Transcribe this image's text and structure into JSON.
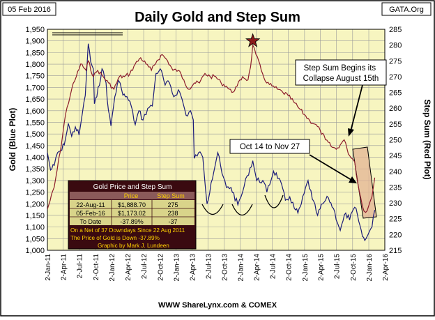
{
  "chart_data": {
    "type": "line",
    "date_box": "05 Feb 2016",
    "source_box": "GATA.Org",
    "title": "Daily Gold and Step Sum",
    "ylabel_left": "Gold   (Blue Plot)",
    "ylabel_right": "Step Sum   (Red Plot)",
    "footer": "WWW ShareLynx.com & COMEX",
    "ylim_left": [
      1000,
      1950
    ],
    "ylim_right": [
      215,
      285
    ],
    "yticks_left": [
      "1,000",
      "1,050",
      "1,100",
      "1,150",
      "1,200",
      "1,250",
      "1,300",
      "1,350",
      "1,400",
      "1,450",
      "1,500",
      "1,550",
      "1,600",
      "1,650",
      "1,700",
      "1,750",
      "1,800",
      "1,850",
      "1,900",
      "1,950"
    ],
    "yticks_right": [
      "215",
      "220",
      "225",
      "230",
      "235",
      "240",
      "245",
      "250",
      "255",
      "260",
      "265",
      "270",
      "275",
      "280",
      "285"
    ],
    "xticks": [
      "2-Jan-11",
      "2-Apr-11",
      "2-Jul-11",
      "2-Oct-11",
      "2-Jan-12",
      "2-Apr-12",
      "2-Jul-12",
      "2-Oct-12",
      "2-Jan-13",
      "2-Apr-13",
      "2-Jul-13",
      "2-Oct-13",
      "2-Jan-14",
      "2-Apr-14",
      "2-Jul-14",
      "2-Oct-14",
      "2-Jan-15",
      "2-Apr-15",
      "2-Jul-15",
      "2-Oct-15",
      "2-Jan-16",
      "2-Apr-16"
    ],
    "grid": true,
    "series": [
      {
        "axis": "left",
        "color": "#1c1c7a",
        "x": [
          "2011-01-02",
          "2011-01-20",
          "2011-02-10",
          "2011-03-01",
          "2011-03-25",
          "2011-04-15",
          "2011-05-01",
          "2011-05-20",
          "2011-06-10",
          "2011-07-01",
          "2011-07-20",
          "2011-08-05",
          "2011-08-22",
          "2011-09-05",
          "2011-09-20",
          "2011-09-26",
          "2011-10-10",
          "2011-11-08",
          "2011-12-01",
          "2011-12-15",
          "2011-12-29",
          "2012-01-20",
          "2012-02-10",
          "2012-02-28",
          "2012-03-20",
          "2012-04-15",
          "2012-05-15",
          "2012-06-05",
          "2012-06-28",
          "2012-07-25",
          "2012-08-20",
          "2012-09-10",
          "2012-10-04",
          "2012-11-01",
          "2012-11-25",
          "2012-12-20",
          "2013-01-15",
          "2013-02-05",
          "2013-02-28",
          "2013-03-25",
          "2013-04-10",
          "2013-04-15",
          "2013-05-10",
          "2013-06-03",
          "2013-06-27",
          "2013-07-20",
          "2013-08-27",
          "2013-09-20",
          "2013-10-15",
          "2013-11-10",
          "2013-12-19",
          "2014-01-15",
          "2014-02-10",
          "2014-03-14",
          "2014-04-05",
          "2014-05-10",
          "2014-06-02",
          "2014-07-10",
          "2014-08-10",
          "2014-09-15",
          "2014-10-10",
          "2014-11-05",
          "2014-11-25",
          "2014-12-15",
          "2015-01-22",
          "2015-02-15",
          "2015-03-17",
          "2015-04-15",
          "2015-05-18",
          "2015-06-15",
          "2015-07-24",
          "2015-08-24",
          "2015-09-15",
          "2015-10-14",
          "2015-10-30",
          "2015-11-27",
          "2015-12-17",
          "2016-01-05",
          "2016-01-20",
          "2016-02-05"
        ],
        "values": [
          1420,
          1345,
          1365,
          1420,
          1430,
          1480,
          1545,
          1490,
          1530,
          1495,
          1590,
          1665,
          1888,
          1810,
          1780,
          1630,
          1660,
          1780,
          1720,
          1600,
          1535,
          1660,
          1730,
          1690,
          1660,
          1640,
          1540,
          1600,
          1560,
          1610,
          1620,
          1760,
          1780,
          1710,
          1720,
          1660,
          1690,
          1650,
          1580,
          1600,
          1560,
          1395,
          1420,
          1400,
          1200,
          1290,
          1420,
          1330,
          1270,
          1270,
          1195,
          1250,
          1320,
          1385,
          1300,
          1300,
          1250,
          1340,
          1310,
          1215,
          1230,
          1180,
          1160,
          1200,
          1300,
          1220,
          1150,
          1200,
          1225,
          1180,
          1085,
          1160,
          1130,
          1185,
          1150,
          1060,
          1050,
          1080,
          1100,
          1173
        ]
      },
      {
        "axis": "right",
        "color": "#8c1c2c",
        "x": [
          "2011-01-02",
          "2011-02-10",
          "2011-03-15",
          "2011-04-15",
          "2011-05-20",
          "2011-06-15",
          "2011-07-10",
          "2011-08-10",
          "2011-08-22",
          "2011-09-20",
          "2011-10-15",
          "2011-11-15",
          "2011-12-15",
          "2012-01-15",
          "2012-02-15",
          "2012-03-15",
          "2012-04-15",
          "2012-05-15",
          "2012-06-15",
          "2012-07-15",
          "2012-08-15",
          "2012-09-15",
          "2012-10-15",
          "2012-11-15",
          "2012-12-15",
          "2013-01-15",
          "2013-02-15",
          "2013-03-15",
          "2013-04-15",
          "2013-05-15",
          "2013-06-15",
          "2013-07-15",
          "2013-08-15",
          "2013-09-15",
          "2013-10-15",
          "2013-11-15",
          "2013-12-15",
          "2014-01-15",
          "2014-02-15",
          "2014-03-01",
          "2014-03-14",
          "2014-04-01",
          "2014-05-01",
          "2014-06-01",
          "2014-07-01",
          "2014-08-01",
          "2014-09-01",
          "2014-10-01",
          "2014-11-01",
          "2014-12-01",
          "2015-01-01",
          "2015-02-01",
          "2015-03-01",
          "2015-04-01",
          "2015-05-01",
          "2015-06-01",
          "2015-07-01",
          "2015-08-01",
          "2015-08-15",
          "2015-09-01",
          "2015-09-15",
          "2015-10-01",
          "2015-10-14",
          "2015-11-01",
          "2015-11-27",
          "2015-12-15",
          "2016-01-01",
          "2016-01-20",
          "2016-02-05"
        ],
        "values": [
          228,
          235,
          246,
          258,
          266,
          270,
          274,
          272,
          275,
          270,
          272,
          270,
          268,
          266,
          270,
          270,
          271,
          274,
          276,
          274,
          272,
          275,
          277,
          275,
          272,
          272,
          269,
          266,
          268,
          268,
          271,
          270,
          270,
          268,
          267,
          265,
          267,
          270,
          269,
          273,
          280,
          277,
          272,
          268,
          267,
          266,
          265,
          264,
          262,
          260,
          258,
          256,
          255,
          253,
          250,
          248,
          247,
          249,
          250,
          247,
          245,
          244,
          243,
          236,
          229,
          227,
          229,
          232,
          238
        ]
      }
    ],
    "marker_star": {
      "x": "2014-03-14",
      "y": 280,
      "axis": "right"
    },
    "annotations": [
      {
        "text": "Step Sum Begins its\nCollapse August 15th"
      },
      {
        "text": "Oct 14 to Nov 27"
      }
    ],
    "table": {
      "title": "Gold Price and Step Sum",
      "headers": [
        "",
        "Price",
        "Step Sum"
      ],
      "rows": [
        [
          "22-Aug-11",
          "$1,888.70",
          "275"
        ],
        [
          "05-Feb-16",
          "$1,173.02",
          "238"
        ],
        [
          "To Date",
          "-37.89%",
          "-37"
        ]
      ],
      "notes": [
        "On a Net of 37 Downdays Since 22 Aug 2011",
        "The Price of Gold is Down -37.89%",
        "Graphic by Mark J. Lundeen"
      ]
    },
    "colors": {
      "plot_background": "#f7f5c0",
      "frame": "#000000",
      "gold_line": "#1c1c7a",
      "step_sum_line": "#8c1c2c",
      "star": "#8b1a1a",
      "table_background": "#3a0a10",
      "table_header": "#d9d48a",
      "table_text": "#ffd200"
    }
  }
}
